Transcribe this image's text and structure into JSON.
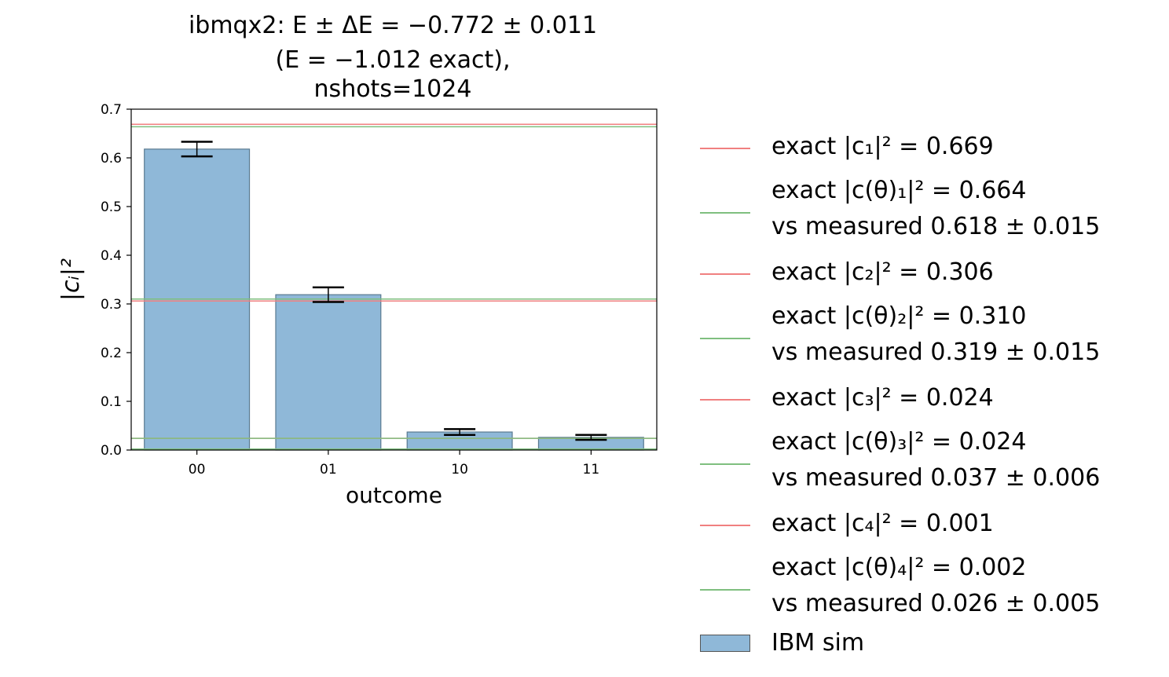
{
  "title_lines": [
    "ibmqx2: E ± ΔE = −0.772 ± 0.011",
    "(E = −1.012 exact),",
    "nshots=1024"
  ],
  "chart_data": {
    "type": "bar",
    "categories": [
      "00",
      "01",
      "10",
      "11"
    ],
    "series": [
      {
        "name": "IBM sim",
        "values": [
          0.618,
          0.319,
          0.037,
          0.026
        ],
        "errors": [
          0.015,
          0.015,
          0.006,
          0.005
        ],
        "color": "#8fb8d8"
      }
    ],
    "hlines": [
      {
        "label": "exact |c₁|² = 0.669",
        "value": 0.669,
        "color": "#f08080"
      },
      {
        "label": "exact |c(θ)₁|² = 0.664",
        "label2": "vs measured 0.618 ± 0.015",
        "value": 0.664,
        "color": "#7fbf7f"
      },
      {
        "label": "exact |c₂|² = 0.306",
        "value": 0.306,
        "color": "#f08080"
      },
      {
        "label": "exact |c(θ)₂|² = 0.310",
        "label2": "vs measured 0.319 ± 0.015",
        "value": 0.31,
        "color": "#7fbf7f"
      },
      {
        "label": "exact |c₃|² = 0.024",
        "value": 0.024,
        "color": "#f08080"
      },
      {
        "label": "exact |c(θ)₃|² = 0.024",
        "label2": "vs measured 0.037 ± 0.006",
        "value": 0.024,
        "color": "#7fbf7f"
      },
      {
        "label": "exact |c₄|² = 0.001",
        "value": 0.001,
        "color": "#f08080"
      },
      {
        "label": "exact |c(θ)₄|² = 0.002",
        "label2": "vs measured 0.026 ± 0.005",
        "value": 0.002,
        "color": "#7fbf7f"
      }
    ],
    "xlabel": "outcome",
    "ylabel": "|cᵢ|²",
    "ylim": [
      0,
      0.7
    ],
    "yticks": [
      "0.0",
      "0.1",
      "0.2",
      "0.3",
      "0.4",
      "0.5",
      "0.6",
      "0.7"
    ],
    "grid": false,
    "legend": "outside-right"
  }
}
